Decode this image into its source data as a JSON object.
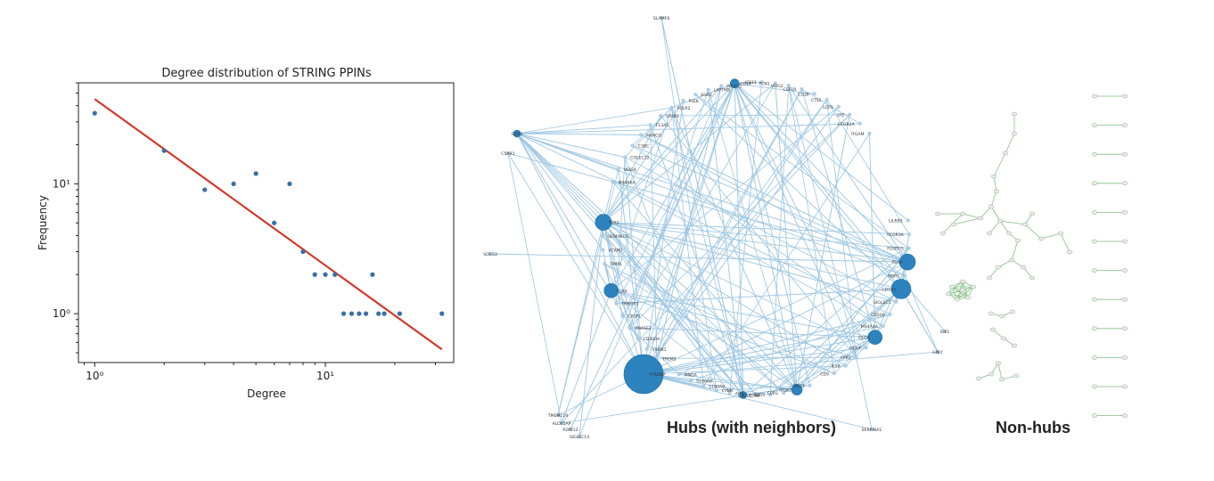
{
  "chart_data": {
    "type": "scatter",
    "title": "Degree distribution of STRING PPINs",
    "xlabel": "Degree",
    "ylabel": "Frequency",
    "xscale": "log",
    "yscale": "log",
    "xlim": [
      0.85,
      36
    ],
    "ylim": [
      0.42,
      60
    ],
    "xticks": [
      {
        "value": 1,
        "label": "10⁰"
      },
      {
        "value": 10,
        "label": "10¹"
      }
    ],
    "yticks": [
      {
        "value": 1,
        "label": "10⁰"
      },
      {
        "value": 10,
        "label": "10¹"
      }
    ],
    "series": [
      {
        "kind": "points",
        "color": "#3a6fa8",
        "x": [
          1,
          2,
          3,
          4,
          5,
          6,
          7,
          8,
          9,
          10,
          11,
          12,
          13,
          14,
          15,
          16,
          17,
          18,
          21,
          32
        ],
        "y": [
          35,
          18,
          9,
          10,
          12,
          5,
          10,
          3,
          2,
          2,
          2,
          1,
          1,
          1,
          1,
          2,
          1,
          1,
          1,
          1
        ]
      },
      {
        "kind": "fit-line",
        "color": "#d03a2a",
        "x": [
          1,
          32
        ],
        "y": [
          45,
          0.53
        ]
      }
    ],
    "grid": false,
    "legend": "none"
  },
  "hub_network": {
    "caption": "Hubs (with neighbors)",
    "node_color": "#2c83bd",
    "edge_color": "#9cc6e2",
    "labels": [
      "SLAMF8",
      "CD14",
      "PIK3CG",
      "LAPTM5",
      "EGR2",
      "PLEK",
      "FOLR2",
      "STAB1",
      "F13A1",
      "MARCO",
      "C3DC",
      "COLEC12",
      "VSIG4",
      "MS4A6A",
      "CD53",
      "C5AR1",
      "TLR2",
      "SERPING1",
      "VCAM1",
      "TIMP1",
      "SOCS3",
      "TLR8",
      "TNFAIP3",
      "CASP1",
      "RNASE2",
      "CD300A",
      "TREM1",
      "TREM2",
      "TYROBP",
      "MNDA",
      "S100A8",
      "S100A9",
      "CYBB",
      "AIF1",
      "CD68",
      "CXCL1",
      "CCR5",
      "CCR1",
      "ITGB2",
      "ADC3",
      "ALOX5AP",
      "CD9",
      "IL1B",
      "FPR1",
      "HCST",
      "C1QA",
      "MS4A4A",
      "CD209",
      "SIGLEC1",
      "CD163",
      "MSR1",
      "TLR4",
      "FCER1G",
      "FCGR3A",
      "LILRB2",
      "IGF2",
      "GNLY",
      "SERPINA1",
      "TMEM119",
      "P2RY12",
      "SIGLEC14",
      "ITGAM",
      "FCGR2A",
      "LYZ",
      "LCP1",
      "CTSS",
      "C1QB",
      "CSF1R",
      "VSIG2",
      "FCN1",
      "CD33"
    ],
    "hubs": [
      {
        "label": "TYROBP"
      },
      {
        "label": "TLR2"
      },
      {
        "label": "CD163"
      },
      {
        "label": "TLR4"
      },
      {
        "label": "TLR8"
      },
      {
        "label": "C1QA"
      },
      {
        "label": "CD14"
      },
      {
        "label": "ITGB2"
      },
      {
        "label": "CD68"
      },
      {
        "label": "CD53"
      }
    ]
  },
  "nonhub_network": {
    "caption": "Non-hubs",
    "node_color": "#e9efe6",
    "edge_color": "#7fbf7f"
  }
}
